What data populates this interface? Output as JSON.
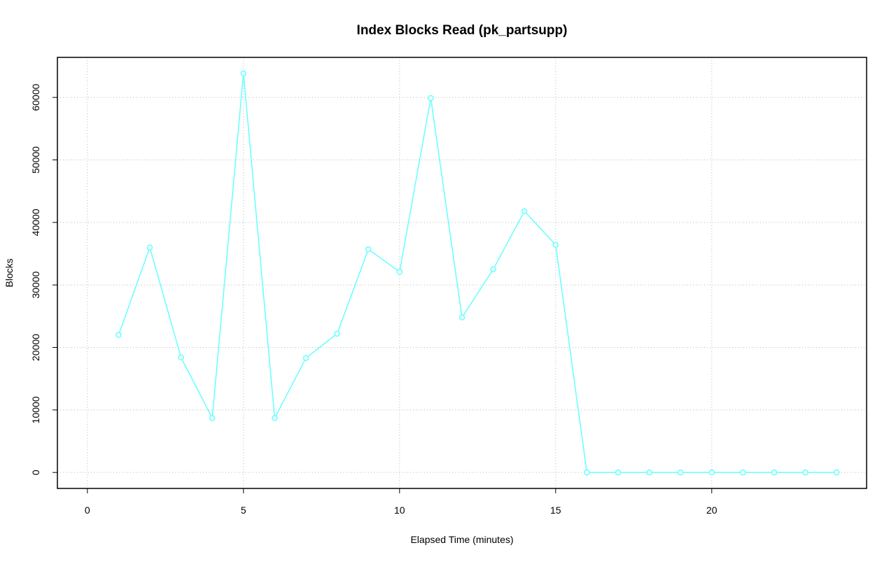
{
  "chart_data": {
    "type": "line",
    "title": "Index Blocks Read (pk_partsupp)",
    "x_label": "Elapsed Time (minutes)",
    "y_label": "Blocks",
    "x": [
      1,
      2,
      3,
      4,
      5,
      6,
      7,
      8,
      9,
      10,
      11,
      12,
      13,
      14,
      15,
      16,
      17,
      18,
      19,
      20,
      21,
      22,
      23,
      24
    ],
    "series": [
      {
        "name": "pk_partsupp",
        "color": "#66ffff",
        "values": [
          22000,
          36000,
          18400,
          8700,
          63849,
          8700,
          18300,
          22200,
          35700,
          32100,
          59900,
          24800,
          32500,
          41800,
          36400,
          0,
          0,
          0,
          0,
          0,
          0,
          0,
          0,
          0
        ]
      }
    ],
    "xlim": [
      -0.96,
      24.96
    ],
    "ylim": [
      -2554,
      66403
    ],
    "xticks": [
      0,
      5,
      10,
      15,
      20
    ],
    "yticks": [
      0,
      10000,
      20000,
      30000,
      40000,
      50000,
      60000
    ],
    "grid": true,
    "markers": true
  }
}
